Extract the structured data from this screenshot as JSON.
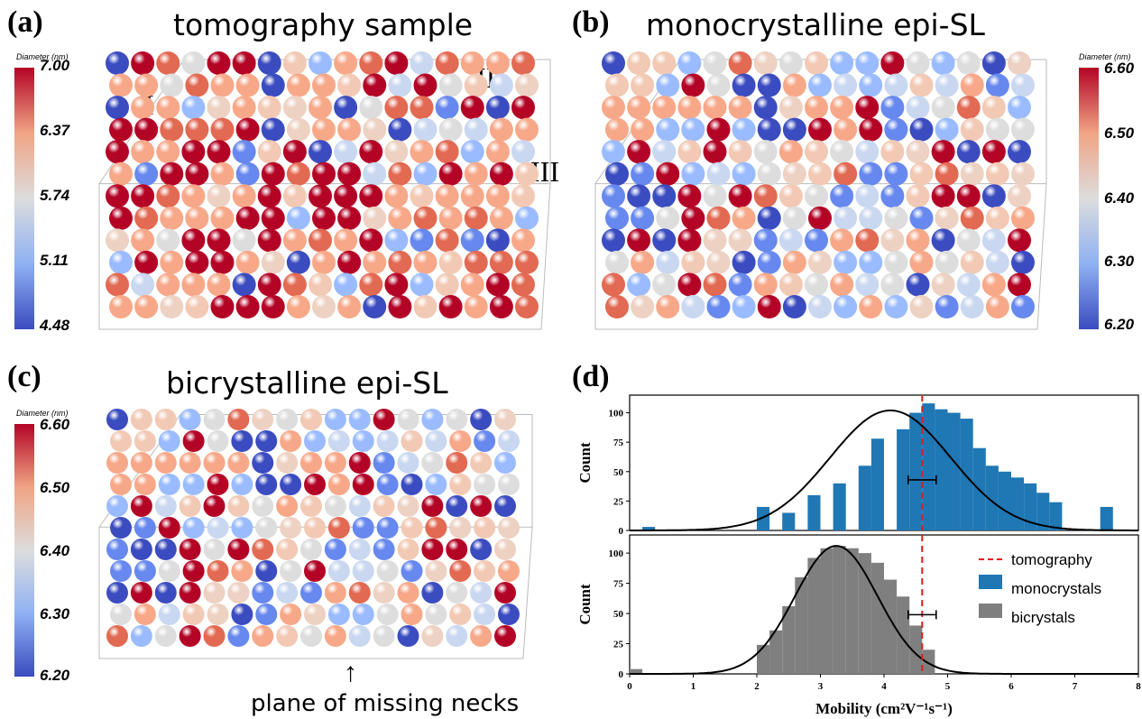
{
  "panels": [
    {
      "label": "(a)",
      "title": "tomography sample",
      "colorbar_title": "Diameter (nm)",
      "ticks": [
        "7.00",
        "6.37",
        "5.74",
        "5.11",
        "4.48"
      ],
      "roman": [
        "I",
        "II",
        "III"
      ]
    },
    {
      "label": "(b)",
      "title": "monocrystalline epi-SL",
      "colorbar_title": "Diameter (nm)",
      "ticks": [
        "6.60",
        "6.50",
        "6.40",
        "6.30",
        "6.20"
      ]
    },
    {
      "label": "(c)",
      "title": "bicrystalline epi-SL",
      "colorbar_title": "Diameter (nm)",
      "ticks": [
        "6.60",
        "6.50",
        "6.40",
        "6.30",
        "6.20"
      ],
      "annotation": "plane of missing necks"
    },
    {
      "label": "(d)"
    }
  ],
  "colors": {
    "mono": "#1f77b4",
    "bi": "#7f7f7f",
    "tomo_line": "#e31a1c",
    "cold": "#3b4cc0",
    "warm": "#b40426",
    "mid": "#dddddd"
  },
  "chart_data": {
    "type": "bar",
    "xlabel": "Mobility (cm²V⁻¹s⁻¹)",
    "ylabel": "Count",
    "xlim": [
      0,
      8
    ],
    "ylim": [
      0,
      115
    ],
    "xticks": [
      "0",
      "1",
      "2",
      "3",
      "4",
      "5",
      "6",
      "7",
      "8"
    ],
    "yticks": [
      "0",
      "25",
      "50",
      "75",
      "100"
    ],
    "tomography_x": 4.6,
    "legend": [
      "tomography",
      "monocrystals",
      "bicrystals"
    ],
    "legend_position": "right",
    "series": [
      {
        "name": "monocrystals",
        "bin_starts": [
          0.2,
          2.0,
          2.4,
          2.8,
          3.2,
          3.6,
          3.8,
          4.2,
          4.4,
          4.6,
          4.8,
          5.0,
          5.2,
          5.4,
          5.6,
          5.8,
          6.0,
          6.2,
          6.4,
          6.6,
          7.4
        ],
        "bin_width": 0.2,
        "counts": [
          3,
          20,
          15,
          30,
          40,
          55,
          78,
          86,
          100,
          108,
          103,
          100,
          95,
          70,
          55,
          50,
          45,
          40,
          32,
          24,
          20
        ],
        "fit": {
          "mu": 4.1,
          "sigma": 0.95,
          "amplitude": 102
        },
        "errorbar": {
          "x": 4.6,
          "xerr": 0.22,
          "y": 43
        }
      },
      {
        "name": "bicrystals",
        "bin_starts": [
          0.0,
          2.0,
          2.2,
          2.4,
          2.6,
          2.8,
          3.0,
          3.2,
          3.4,
          3.6,
          3.8,
          4.0,
          4.2,
          4.4,
          4.6
        ],
        "bin_width": 0.2,
        "counts": [
          4,
          24,
          36,
          56,
          80,
          96,
          104,
          106,
          104,
          100,
          92,
          78,
          64,
          40,
          20
        ],
        "fit": {
          "mu": 3.25,
          "sigma": 0.65,
          "amplitude": 106
        },
        "errorbar": {
          "x": 4.6,
          "xerr": 0.22,
          "y": 49
        }
      }
    ]
  }
}
